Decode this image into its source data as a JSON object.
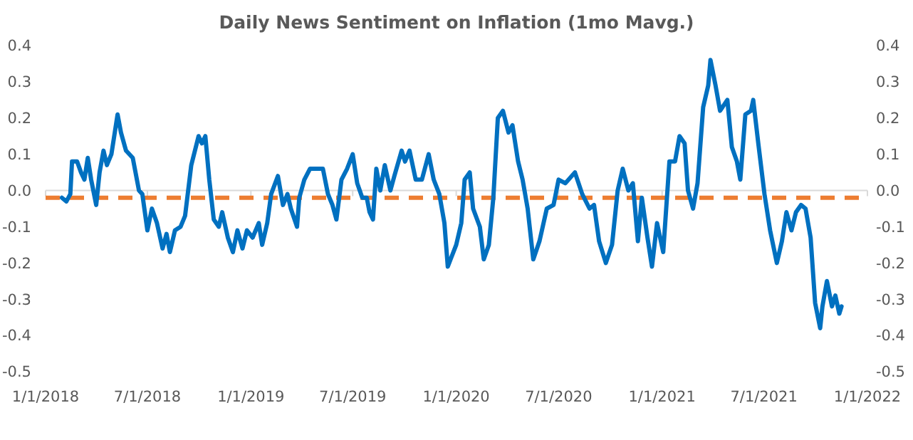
{
  "chart_data": {
    "type": "line",
    "title": "Daily News Sentiment on Inflation (1mo Mavg.)",
    "x": [
      "2018-01-30",
      "2018-02-07",
      "2018-02-14",
      "2018-02-17",
      "2018-02-26",
      "2018-03-05",
      "2018-03-11",
      "2018-03-17",
      "2018-03-23",
      "2018-04-01",
      "2018-04-07",
      "2018-04-14",
      "2018-04-20",
      "2018-04-28",
      "2018-05-09",
      "2018-05-15",
      "2018-05-24",
      "2018-06-05",
      "2018-06-16",
      "2018-06-22",
      "2018-07-01",
      "2018-07-09",
      "2018-07-18",
      "2018-07-28",
      "2018-08-04",
      "2018-08-10",
      "2018-08-19",
      "2018-08-29",
      "2018-09-06",
      "2018-09-17",
      "2018-09-30",
      "2018-10-06",
      "2018-10-12",
      "2018-10-19",
      "2018-10-27",
      "2018-11-05",
      "2018-11-11",
      "2018-11-21",
      "2018-11-30",
      "2018-12-08",
      "2018-12-17",
      "2018-12-25",
      "2019-01-04",
      "2019-01-15",
      "2019-01-21",
      "2019-01-30",
      "2019-02-06",
      "2019-02-18",
      "2019-02-27",
      "2019-03-07",
      "2019-03-13",
      "2019-03-24",
      "2019-03-28",
      "2019-04-06",
      "2019-04-16",
      "2019-05-01",
      "2019-05-09",
      "2019-05-18",
      "2019-05-26",
      "2019-06-02",
      "2019-06-11",
      "2019-06-21",
      "2019-07-01",
      "2019-07-09",
      "2019-07-18",
      "2019-07-26",
      "2019-07-31",
      "2019-08-06",
      "2019-08-12",
      "2019-08-19",
      "2019-08-27",
      "2019-09-06",
      "2019-09-13",
      "2019-09-26",
      "2019-10-02",
      "2019-10-10",
      "2019-10-21",
      "2019-11-01",
      "2019-11-13",
      "2019-11-22",
      "2019-12-02",
      "2019-12-11",
      "2019-12-17",
      "2019-12-22",
      "2020-01-01",
      "2020-01-10",
      "2020-01-16",
      "2020-01-25",
      "2020-01-31",
      "2020-02-12",
      "2020-02-19",
      "2020-02-28",
      "2020-03-07",
      "2020-03-15",
      "2020-03-24",
      "2020-04-03",
      "2020-04-10",
      "2020-04-20",
      "2020-04-28",
      "2020-05-07",
      "2020-05-17",
      "2020-05-28",
      "2020-06-10",
      "2020-06-22",
      "2020-07-01",
      "2020-07-13",
      "2020-07-30",
      "2020-08-12",
      "2020-08-25",
      "2020-09-02",
      "2020-09-11",
      "2020-09-23",
      "2020-10-04",
      "2020-10-14",
      "2020-10-23",
      "2020-11-02",
      "2020-11-10",
      "2020-11-19",
      "2020-11-26",
      "2020-12-06",
      "2020-12-14",
      "2020-12-23",
      "2021-01-03",
      "2021-01-14",
      "2021-01-24",
      "2021-02-01",
      "2021-02-10",
      "2021-02-16",
      "2021-02-25",
      "2021-03-05",
      "2021-03-15",
      "2021-03-24",
      "2021-03-28",
      "2021-04-06",
      "2021-04-14",
      "2021-04-27",
      "2021-05-05",
      "2021-05-14",
      "2021-05-20",
      "2021-05-29",
      "2021-06-08",
      "2021-06-12",
      "2021-06-21",
      "2021-07-02",
      "2021-07-12",
      "2021-07-24",
      "2021-08-02",
      "2021-08-10",
      "2021-08-19",
      "2021-08-27",
      "2021-09-05",
      "2021-09-13",
      "2021-09-22",
      "2021-09-30",
      "2021-10-09",
      "2021-10-13",
      "2021-10-21",
      "2021-10-30",
      "2021-11-05",
      "2021-11-12",
      "2021-11-16"
    ],
    "series": [
      {
        "color": "#0070c0",
        "values": [
          -0.02,
          -0.03,
          -0.01,
          0.08,
          0.08,
          0.05,
          0.03,
          0.09,
          0.03,
          -0.04,
          0.05,
          0.11,
          0.07,
          0.1,
          0.21,
          0.16,
          0.11,
          0.09,
          0.0,
          -0.01,
          -0.11,
          -0.05,
          -0.09,
          -0.16,
          -0.12,
          -0.17,
          -0.11,
          -0.1,
          -0.07,
          0.07,
          0.15,
          0.13,
          0.15,
          0.03,
          -0.08,
          -0.1,
          -0.06,
          -0.13,
          -0.17,
          -0.11,
          -0.16,
          -0.11,
          -0.13,
          -0.09,
          -0.15,
          -0.09,
          -0.01,
          0.04,
          -0.04,
          -0.01,
          -0.05,
          -0.1,
          -0.02,
          0.03,
          0.06,
          0.06,
          0.06,
          -0.01,
          -0.04,
          -0.08,
          0.03,
          0.06,
          0.1,
          0.02,
          -0.02,
          -0.02,
          -0.06,
          -0.08,
          0.06,
          0.0,
          0.07,
          0.0,
          0.04,
          0.11,
          0.08,
          0.11,
          0.03,
          0.03,
          0.1,
          0.03,
          -0.01,
          -0.09,
          -0.21,
          -0.19,
          -0.15,
          -0.09,
          0.03,
          0.05,
          -0.05,
          -0.1,
          -0.19,
          -0.15,
          -0.02,
          0.2,
          0.22,
          0.16,
          0.18,
          0.08,
          0.03,
          -0.05,
          -0.19,
          -0.14,
          -0.05,
          -0.04,
          0.03,
          0.02,
          0.05,
          -0.01,
          -0.05,
          -0.04,
          -0.14,
          -0.2,
          -0.15,
          0.0,
          0.06,
          0.0,
          0.02,
          -0.14,
          -0.02,
          -0.13,
          -0.21,
          -0.09,
          -0.17,
          0.08,
          0.08,
          0.15,
          0.13,
          0.0,
          -0.05,
          0.02,
          0.23,
          0.29,
          0.36,
          0.29,
          0.22,
          0.25,
          0.12,
          0.08,
          0.03,
          0.21,
          0.22,
          0.25,
          0.13,
          -0.01,
          -0.11,
          -0.2,
          -0.14,
          -0.06,
          -0.11,
          -0.06,
          -0.04,
          -0.05,
          -0.13,
          -0.31,
          -0.38,
          -0.32,
          -0.25,
          -0.32,
          -0.29,
          -0.34,
          -0.32
        ]
      }
    ],
    "ref_lines": [
      {
        "axis": "y",
        "value": -0.02,
        "color": "#ed7d31",
        "line_style": "dashed"
      }
    ],
    "xlim": [
      "2018-01-01",
      "2022-01-01"
    ],
    "xticks": [
      {
        "value": "2018-01-01",
        "label": "1/1/2018"
      },
      {
        "value": "2018-07-01",
        "label": "7/1/2018"
      },
      {
        "value": "2019-01-01",
        "label": "1/1/2019"
      },
      {
        "value": "2019-07-01",
        "label": "7/1/2019"
      },
      {
        "value": "2020-01-01",
        "label": "1/1/2020"
      },
      {
        "value": "2020-07-01",
        "label": "7/1/2020"
      },
      {
        "value": "2021-01-01",
        "label": "1/1/2021"
      },
      {
        "value": "2021-07-01",
        "label": "7/1/2021"
      },
      {
        "value": "2022-01-01",
        "label": "1/1/2022"
      }
    ],
    "ylim": [
      -0.5,
      0.4
    ],
    "yticks": [
      {
        "value": -0.5,
        "label": "-0.5"
      },
      {
        "value": -0.4,
        "label": "-0.4"
      },
      {
        "value": -0.3,
        "label": "-0.3"
      },
      {
        "value": -0.2,
        "label": "-0.2"
      },
      {
        "value": -0.1,
        "label": "-0.1"
      },
      {
        "value": 0,
        "label": "0.0"
      },
      {
        "value": 0.1,
        "label": "0.1"
      },
      {
        "value": 0.2,
        "label": "0.2"
      },
      {
        "value": 0.3,
        "label": "0.3"
      },
      {
        "value": 0.4,
        "label": "0.4"
      }
    ],
    "y2lim": [
      -0.5,
      0.4
    ],
    "y2ticks": [
      {
        "value": -0.5,
        "label": "-0.5"
      },
      {
        "value": -0.4,
        "label": "-0.4"
      },
      {
        "value": -0.3,
        "label": "-0.3"
      },
      {
        "value": -0.2,
        "label": "-0.2"
      },
      {
        "value": -0.1,
        "label": "-0.1"
      },
      {
        "value": 0,
        "label": "0.0"
      },
      {
        "value": 0.1,
        "label": "0.1"
      },
      {
        "value": 0.2,
        "label": "0.2"
      },
      {
        "value": 0.3,
        "label": "0.3"
      },
      {
        "value": 0.4,
        "label": "0.4"
      }
    ],
    "marker": "none",
    "line_style": "solid"
  }
}
